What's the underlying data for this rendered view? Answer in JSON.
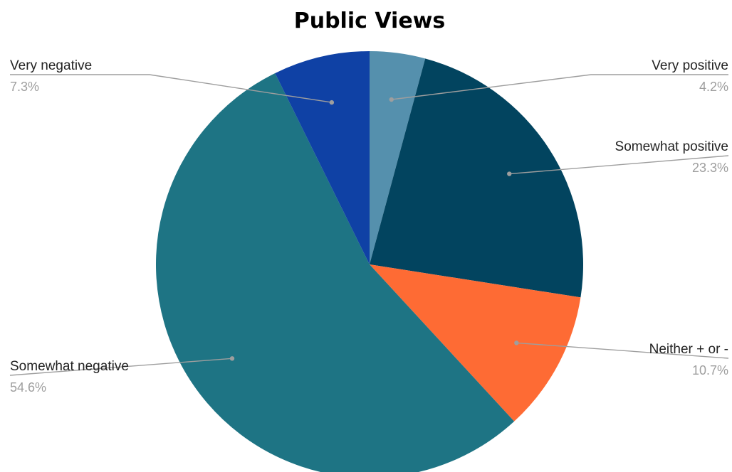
{
  "chart_data": {
    "type": "pie",
    "title": "Public Views",
    "start_angle_deg": 0,
    "direction": "clockwise",
    "slices": [
      {
        "label": "Very positive",
        "value": 4.2,
        "display": "4.2%",
        "color": "#5590ad",
        "label_side": "right"
      },
      {
        "label": "Somewhat positive",
        "value": 23.3,
        "display": "23.3%",
        "color": "#02445f",
        "label_side": "right"
      },
      {
        "label": "Neither + or -",
        "value": 10.7,
        "display": "10.7%",
        "color": "#fe6b34",
        "label_side": "right"
      },
      {
        "label": "Somewhat negative",
        "value": 54.6,
        "display": "54.6%",
        "color": "#1e7484",
        "label_side": "left"
      },
      {
        "label": "Very negative",
        "value": 7.3,
        "display": "7.3%",
        "color": "#0f41a5",
        "label_side": "left"
      }
    ]
  }
}
